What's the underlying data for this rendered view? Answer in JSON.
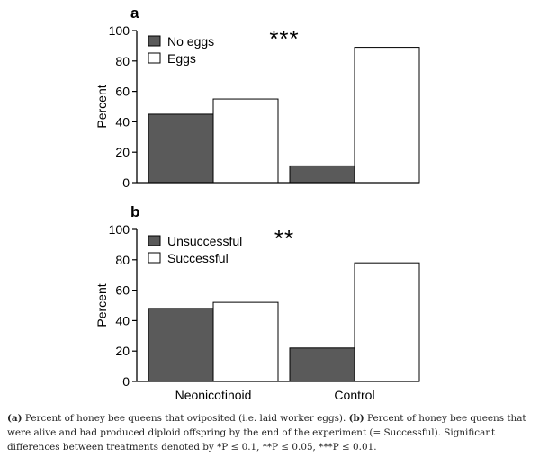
{
  "chart_data": [
    {
      "type": "bar",
      "panel_label": "a",
      "categories": [
        "Neonicotinoid",
        "Control"
      ],
      "ylabel": "Percent",
      "ylim": [
        0,
        100
      ],
      "yticks": [
        0,
        20,
        40,
        60,
        80,
        100
      ],
      "series": [
        {
          "name": "No eggs",
          "values": [
            45,
            11
          ],
          "color": "#5a5a5a"
        },
        {
          "name": "Eggs",
          "values": [
            55,
            89
          ],
          "color": "#ffffff"
        }
      ],
      "significance": "***",
      "legend_position": "top-left",
      "grid": false
    },
    {
      "type": "bar",
      "panel_label": "b",
      "categories": [
        "Neonicotinoid",
        "Control"
      ],
      "ylabel": "Percent",
      "ylim": [
        0,
        100
      ],
      "yticks": [
        0,
        20,
        40,
        60,
        80,
        100
      ],
      "series": [
        {
          "name": "Unsuccessful",
          "values": [
            48,
            22
          ],
          "color": "#5a5a5a"
        },
        {
          "name": "Successful",
          "values": [
            52,
            78
          ],
          "color": "#ffffff"
        }
      ],
      "significance": "**",
      "legend_position": "top-left",
      "grid": false
    }
  ],
  "caption": {
    "a_label": "(a)",
    "a_text": " Percent of honey bee queens that oviposited (i.e. laid worker eggs). ",
    "b_label": "(b)",
    "b_text": " Percent of honey bee queens that were alive and had produced diploid offspring by the end of the experiment (= Successful). Significant differences between treatments denoted by *P ≤ 0.1, **P ≤ 0.05, ***P ≤ 0.01."
  }
}
